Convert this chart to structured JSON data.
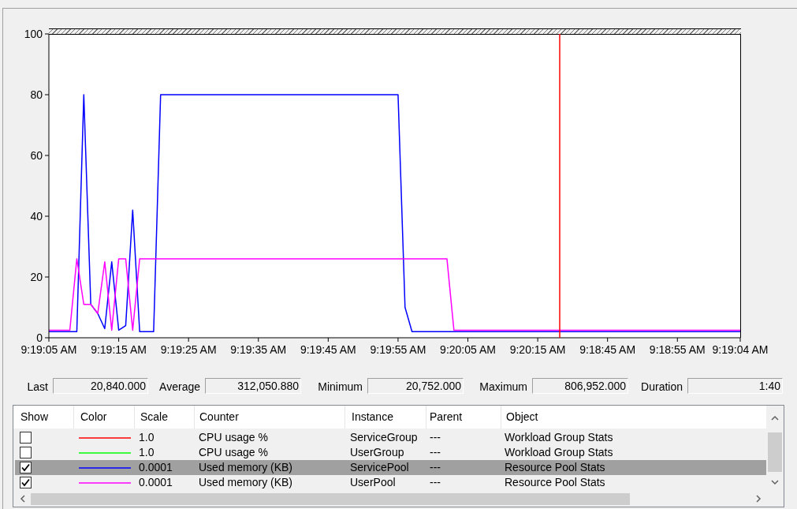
{
  "chart_data": {
    "type": "line",
    "categories": [
      "9:19:05 AM",
      null,
      null,
      null,
      null,
      null,
      null,
      null,
      null,
      null,
      "9:19:15 AM",
      null,
      null,
      null,
      null,
      null,
      null,
      null,
      null,
      null,
      "9:19:25 AM",
      null,
      null,
      null,
      null,
      null,
      null,
      null,
      null,
      null,
      "9:19:35 AM",
      null,
      null,
      null,
      null,
      null,
      null,
      null,
      null,
      null,
      "9:19:45 AM",
      null,
      null,
      null,
      null,
      null,
      null,
      null,
      null,
      null,
      "9:19:55 AM",
      null,
      null,
      null,
      null,
      null,
      null,
      null,
      null,
      null,
      "9:20:05 AM",
      null,
      null,
      null,
      null,
      null,
      null,
      null,
      null,
      null,
      "9:20:15 AM",
      null,
      null,
      null,
      null,
      null,
      null,
      null,
      null,
      null,
      "9:18:45 AM",
      null,
      null,
      null,
      null,
      null,
      null,
      null,
      null,
      null,
      "9:18:55 AM",
      null,
      null,
      null,
      null,
      null,
      null,
      null,
      null,
      "9:19:04 AM"
    ],
    "ylim": [
      0,
      100
    ],
    "yticks": [
      0,
      20,
      40,
      60,
      80,
      100
    ],
    "series": [
      {
        "color": "#ff0000",
        "values": [
          null,
          null,
          null,
          null,
          null,
          null,
          null,
          null,
          null,
          null,
          null,
          null,
          null,
          null,
          null,
          null,
          null,
          null,
          null,
          null,
          null,
          null,
          null,
          null,
          null,
          null,
          null,
          null,
          null,
          null,
          null,
          null,
          null,
          null,
          null,
          null,
          null,
          null,
          null,
          null,
          null,
          null,
          null,
          null,
          null,
          null,
          null,
          null,
          null,
          null,
          null,
          null,
          null,
          null,
          null,
          null,
          null,
          null,
          null,
          null,
          null,
          null,
          null,
          null,
          null,
          null,
          null,
          null,
          null,
          null,
          null,
          null,
          null,
          null,
          null,
          null,
          null,
          null,
          null,
          null,
          null,
          null,
          null,
          null,
          null,
          null,
          null,
          null,
          null,
          null,
          null,
          null,
          null,
          null,
          null,
          null,
          null,
          null,
          null,
          null
        ]
      },
      {
        "color": "#00ff00",
        "values": [
          null,
          null,
          null,
          null,
          null,
          null,
          null,
          null,
          null,
          null,
          null,
          null,
          null,
          null,
          null,
          null,
          null,
          null,
          null,
          null,
          null,
          null,
          null,
          null,
          null,
          null,
          null,
          null,
          null,
          null,
          null,
          null,
          null,
          null,
          null,
          null,
          null,
          null,
          null,
          null,
          null,
          null,
          null,
          null,
          null,
          null,
          null,
          null,
          null,
          null,
          null,
          null,
          null,
          null,
          null,
          null,
          null,
          null,
          null,
          null,
          null,
          null,
          null,
          null,
          null,
          null,
          null,
          null,
          null,
          null,
          null,
          null,
          null,
          null,
          null,
          null,
          null,
          null,
          null,
          null,
          null,
          null,
          null,
          null,
          null,
          null,
          null,
          null,
          null,
          null,
          null,
          null,
          null,
          null,
          null,
          null,
          null,
          null,
          null,
          null
        ]
      },
      {
        "color": "#0000ff",
        "values": [
          2,
          2,
          2,
          2,
          2,
          80,
          11,
          8,
          3,
          25,
          2.5,
          4,
          42,
          2,
          2,
          2,
          80,
          80,
          80,
          80,
          80,
          80,
          80,
          80,
          80,
          80,
          80,
          80,
          80,
          80,
          80,
          80,
          80,
          80,
          80,
          80,
          80,
          80,
          80,
          80,
          80,
          80,
          80,
          80,
          80,
          80,
          80,
          80,
          80,
          80,
          80,
          10,
          2,
          2,
          2,
          2,
          2,
          2,
          2,
          2,
          2,
          2,
          2,
          2,
          2,
          2,
          2,
          2,
          2,
          2,
          2,
          2,
          2,
          2,
          2,
          2,
          2,
          2,
          2,
          2,
          2,
          2,
          2,
          2,
          2,
          2,
          2,
          2,
          2,
          2,
          2,
          2,
          2,
          2,
          2,
          2,
          2,
          2,
          2,
          2
        ]
      },
      {
        "color": "#ff00ff",
        "values": [
          2.5,
          2.5,
          2.5,
          2.5,
          26,
          11,
          11,
          8,
          25,
          2.5,
          26,
          26,
          2.5,
          26,
          26,
          26,
          26,
          26,
          26,
          26,
          26,
          26,
          26,
          26,
          26,
          26,
          26,
          26,
          26,
          26,
          26,
          26,
          26,
          26,
          26,
          26,
          26,
          26,
          26,
          26,
          26,
          26,
          26,
          26,
          26,
          26,
          26,
          26,
          26,
          26,
          26,
          26,
          26,
          26,
          26,
          26,
          26,
          26,
          2.5,
          2.5,
          2.5,
          2.5,
          2.5,
          2.5,
          2.5,
          2.5,
          2.5,
          2.5,
          2.5,
          2.5,
          2.5,
          2.5,
          2.5,
          2.5,
          2.5,
          2.5,
          2.5,
          2.5,
          2.5,
          2.5,
          2.5,
          2.5,
          2.5,
          2.5,
          2.5,
          2.5,
          2.5,
          2.5,
          2.5,
          2.5,
          2.5,
          2.5,
          2.5,
          2.5,
          2.5,
          2.5,
          2.5,
          2.5,
          2.5,
          2.5
        ]
      }
    ],
    "annotations": [
      "Last",
      "20,840.000",
      "Average",
      "312,050.880",
      "Minimum",
      "20,752.000",
      "Maximum",
      "806,952.000",
      "Duration",
      "1:40",
      "Show",
      "Color",
      "Scale",
      "Counter",
      "Instance",
      "Parent",
      "Object",
      "1.0",
      "CPU usage %",
      "ServiceGroup",
      "---",
      "Workload Group Stats",
      "1.0",
      "CPU usage %",
      "UserGroup",
      "---",
      "Workload Group Stats",
      "0.0001",
      "Used memory (KB)",
      "ServicePool",
      "---",
      "Resource Pool Stats",
      "0.0001",
      "Used memory (KB)",
      "UserPool",
      "---",
      "Resource Pool Stats"
    ]
  }
}
